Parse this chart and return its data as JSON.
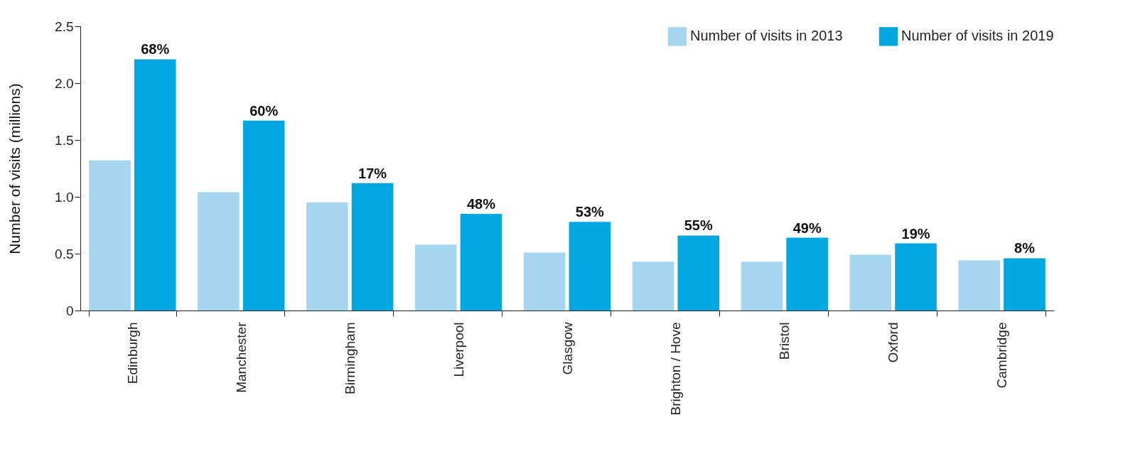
{
  "chart_data": {
    "type": "bar",
    "ylabel": "Number of visits (millions)",
    "categories": [
      "Edinburgh",
      "Manchester",
      "Birmingham",
      "Liverpool",
      "Glasgow",
      "Brighton / Hove",
      "Bristol",
      "Oxford",
      "Cambridge"
    ],
    "series": [
      {
        "name": "Number of visits in 2013",
        "color": "#a6d5f2",
        "values": [
          1.32,
          1.04,
          0.95,
          0.58,
          0.51,
          0.43,
          0.43,
          0.49,
          0.44
        ]
      },
      {
        "name": "Number of visits in 2019",
        "color": "#00a7e1",
        "values": [
          2.21,
          1.67,
          1.12,
          0.85,
          0.78,
          0.66,
          0.64,
          0.59,
          0.46
        ]
      }
    ],
    "annotations": [
      {
        "text": "68%",
        "x": "Edinburgh",
        "y": 2.21
      },
      {
        "text": "60%",
        "x": "Manchester",
        "y": 1.67
      },
      {
        "text": "17%",
        "x": "Birmingham",
        "y": 1.12
      },
      {
        "text": "48%",
        "x": "Liverpool",
        "y": 0.85
      },
      {
        "text": "53%",
        "x": "Glasgow",
        "y": 0.78
      },
      {
        "text": "55%",
        "x": "Brighton / Hove",
        "y": 0.66
      },
      {
        "text": "49%",
        "x": "Bristol",
        "y": 0.64
      },
      {
        "text": "19%",
        "x": "Oxford",
        "y": 0.59
      },
      {
        "text": "8%",
        "x": "Cambridge",
        "y": 0.46
      }
    ],
    "ylim": [
      0,
      2.5
    ],
    "yticks": [
      0,
      {
        "value": 0.5,
        "label": "0.5"
      },
      {
        "value": 1,
        "label": "1.0"
      },
      {
        "value": 1.5,
        "label": "1.5"
      },
      {
        "value": 2,
        "label": "2.0"
      },
      {
        "value": 2.5,
        "label": "2.5"
      }
    ],
    "grid": false,
    "legend": "top right"
  }
}
